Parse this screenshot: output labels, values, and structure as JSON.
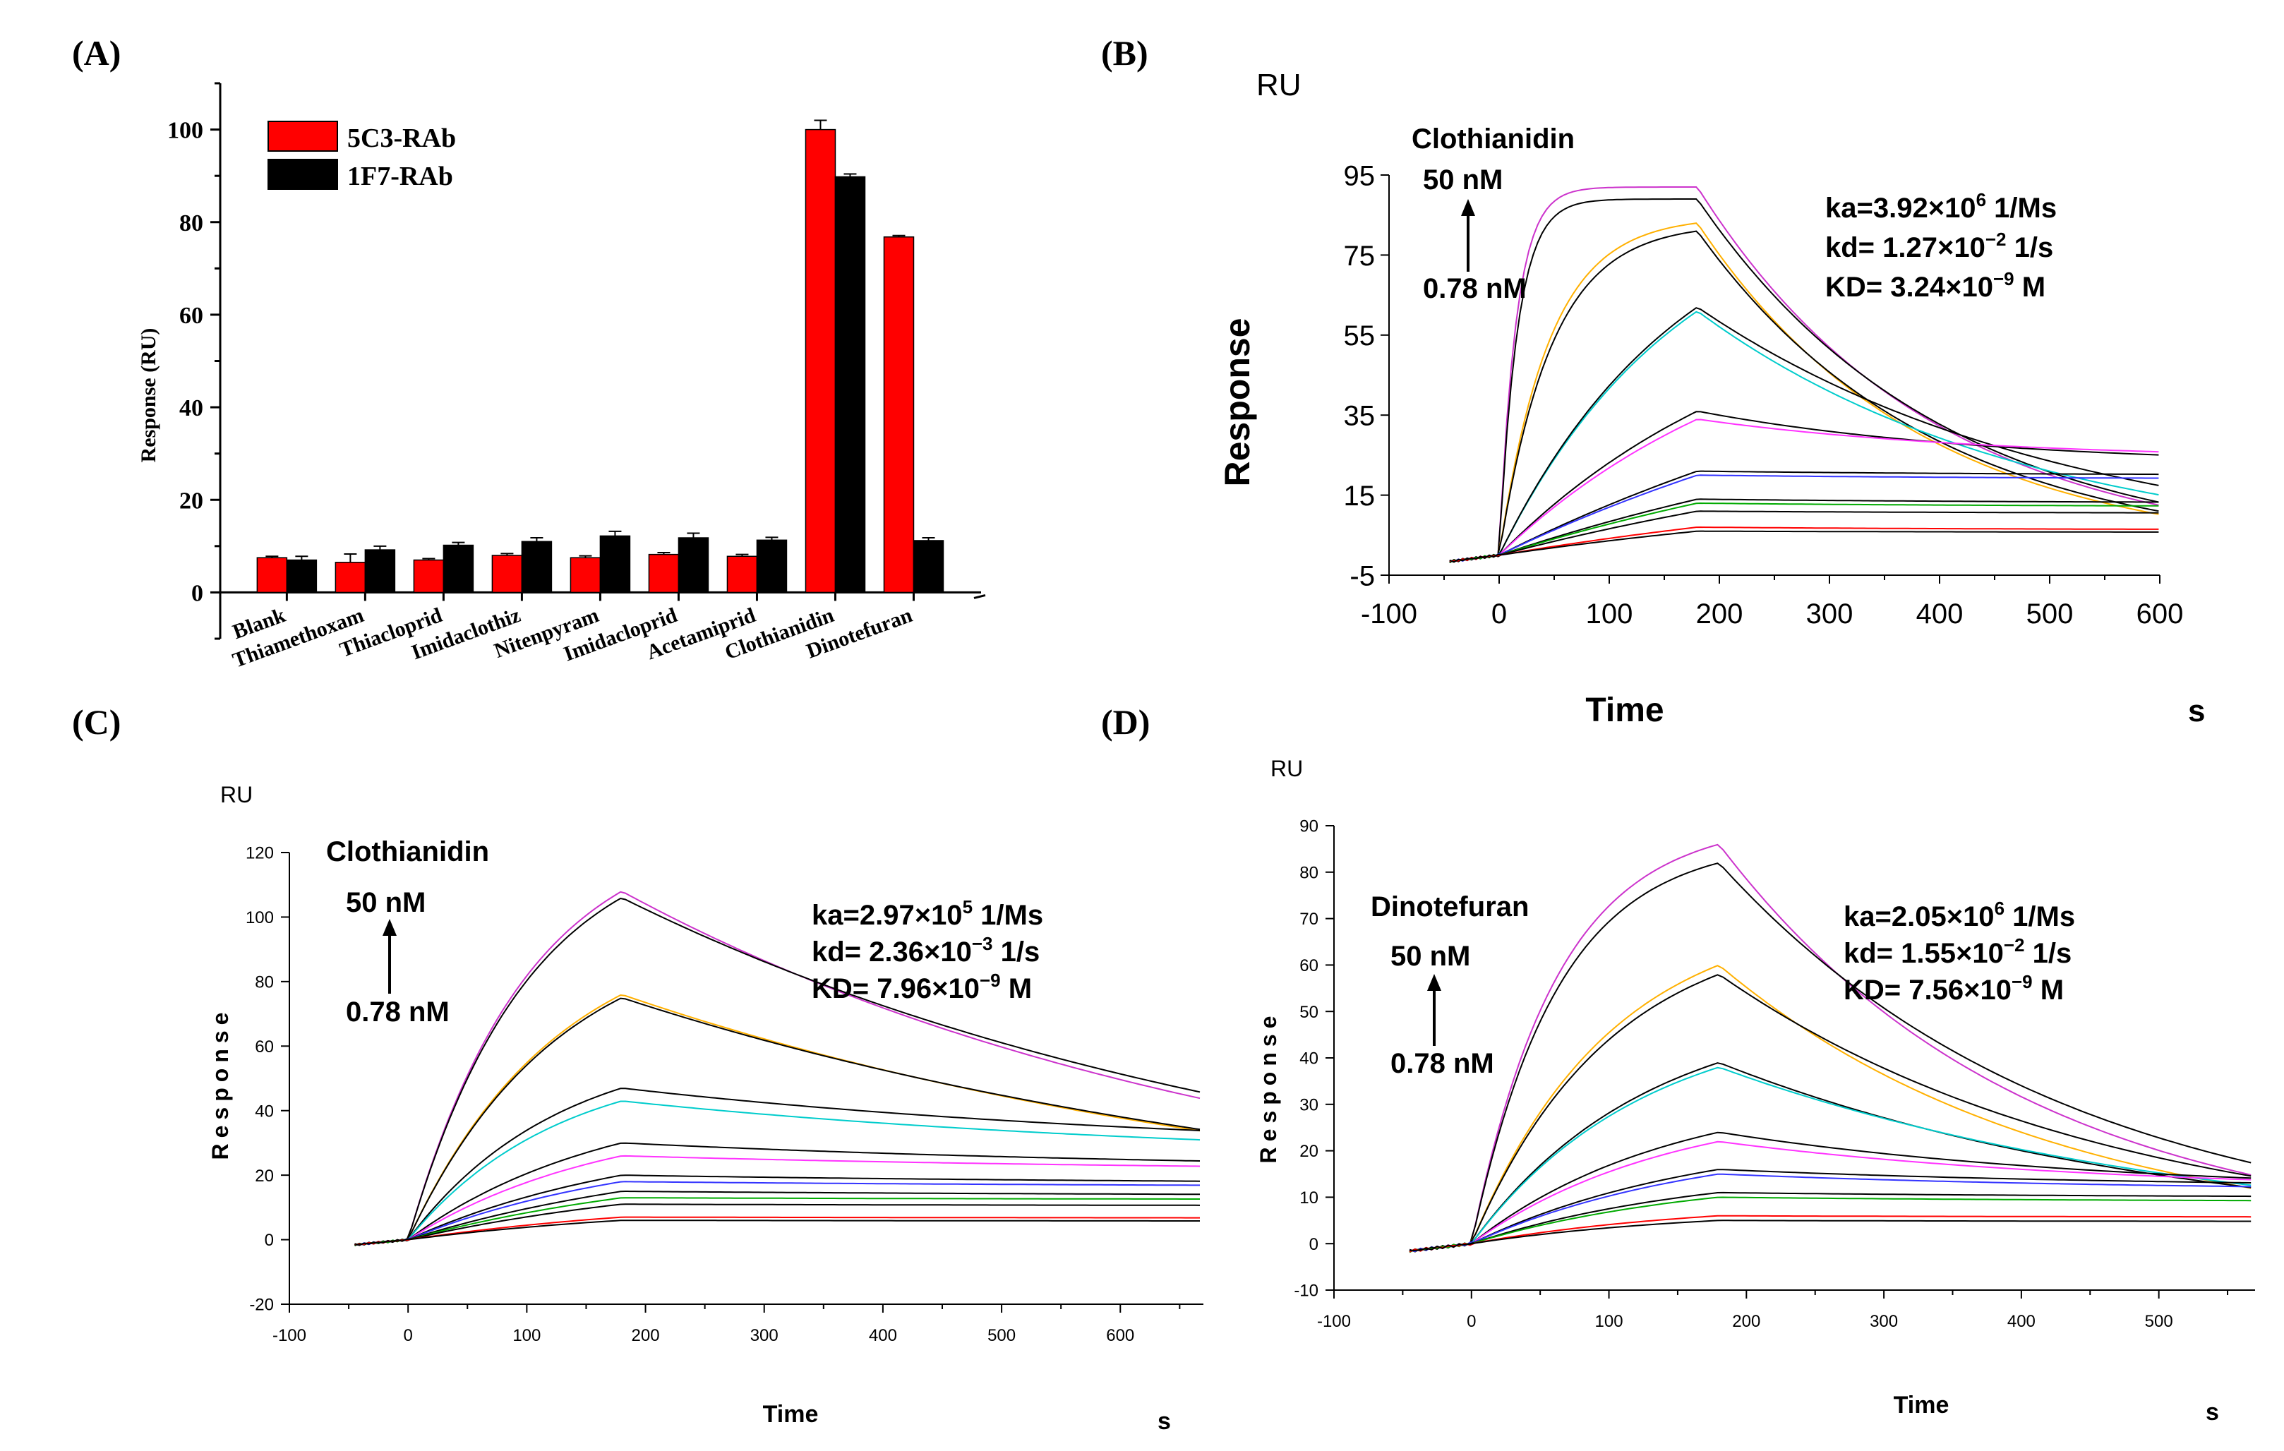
{
  "chart_data": [
    {
      "panel": "(A)",
      "type": "bar",
      "ylabel": "Response (RU)",
      "ylim": [
        -10,
        110
      ],
      "yticks": [
        0,
        20,
        40,
        60,
        80,
        100
      ],
      "categories": [
        "Blank",
        "Thiamethoxam",
        "Thiacloprid",
        "Imidaclothiz",
        "Nitenpyram",
        "Imidacloprid",
        "Acetamiprid",
        "Clothianidin",
        "Dinotefuran"
      ],
      "legend_position": "top-left",
      "series": [
        {
          "name": "5C3-RAb",
          "color": "#ff0000",
          "values": [
            7.5,
            6.5,
            7.0,
            8.0,
            7.5,
            8.2,
            7.8,
            100.0,
            76.8
          ],
          "errors": [
            0.3,
            1.8,
            0.3,
            0.4,
            0.4,
            0.4,
            0.4,
            2.0,
            0.3
          ]
        },
        {
          "name": "1F7-RAb",
          "color": "#000000",
          "values": [
            7.0,
            9.2,
            10.2,
            11.0,
            12.2,
            11.8,
            11.3,
            89.8,
            11.2
          ],
          "errors": [
            0.8,
            0.8,
            0.6,
            0.8,
            1.0,
            1.0,
            0.6,
            0.6,
            0.6
          ]
        }
      ]
    },
    {
      "panel": "(B)",
      "type": "line",
      "unit_label": "RU",
      "ylabel": "Response",
      "xlabel": "Time",
      "xunit": "s",
      "xlim": [
        -100,
        600
      ],
      "ylim": [
        -5,
        95
      ],
      "xticks": [
        -100,
        0,
        100,
        200,
        300,
        400,
        500,
        600
      ],
      "yticks": [
        -5,
        15,
        35,
        55,
        75,
        95
      ],
      "analyte": "Clothianidin",
      "conc_high": "50 nM",
      "conc_low": "0.78 nM",
      "kinetics": [
        {
          "pre": "ka=3.92×10",
          "exp": "6",
          "post": " 1/Ms"
        },
        {
          "pre": "kd= 1.27×10",
          "exp": "−2",
          "post": " 1/s"
        },
        {
          "pre": "KD= 3.24×10",
          "exp": "−9",
          "post": " M"
        }
      ],
      "t_end": 180,
      "x_start": -45,
      "x_end": 600,
      "curves": [
        {
          "color": "#cc33cc",
          "peak": 92,
          "k": 0.065,
          "plateau": 0,
          "tau": 210
        },
        {
          "color": "#000000",
          "peak": 89,
          "k": 0.06,
          "plateau": 0,
          "tau": 220
        },
        {
          "color": "#ffb000",
          "peak": 83,
          "k": 0.022,
          "plateau": 0,
          "tau": 200
        },
        {
          "color": "#000000",
          "peak": 81,
          "k": 0.021,
          "plateau": 0,
          "tau": 210
        },
        {
          "color": "#00cccc",
          "peak": 61,
          "k": 0.006,
          "plateau": 0,
          "tau": 300
        },
        {
          "color": "#000000",
          "peak": 62,
          "k": 0.006,
          "plateau": 0,
          "tau": 330
        },
        {
          "color": "#000000",
          "peak": 36,
          "k": 0.004,
          "plateau": 0.62,
          "tau": 260
        },
        {
          "color": "#ff33ff",
          "peak": 34,
          "k": 0.004,
          "plateau": 0.7,
          "tau": 260
        },
        {
          "color": "#000000",
          "peak": 21,
          "k": 0.002,
          "plateau": 0.95,
          "tau": 300
        },
        {
          "color": "#3333ff",
          "peak": 20,
          "k": 0.002,
          "plateau": 0.95,
          "tau": 300
        },
        {
          "color": "#000000",
          "peak": 14,
          "k": 0.002,
          "plateau": 0.93,
          "tau": 300
        },
        {
          "color": "#00aa00",
          "peak": 13,
          "k": 0.002,
          "plateau": 0.93,
          "tau": 300
        },
        {
          "color": "#000000",
          "peak": 11,
          "k": 0.002,
          "plateau": 0.95,
          "tau": 300
        },
        {
          "color": "#ff0000",
          "peak": 7,
          "k": 0.002,
          "plateau": 0.9,
          "tau": 300
        },
        {
          "color": "#000000",
          "peak": 6,
          "k": 0.002,
          "plateau": 0.95,
          "tau": 300
        }
      ]
    },
    {
      "panel": "(C)",
      "type": "line",
      "unit_label": "RU",
      "ylabel": "Response",
      "xlabel": "Time",
      "xunit": "s",
      "xlim": [
        -100,
        670
      ],
      "ylim": [
        -20,
        120
      ],
      "xticks": [
        -100,
        0,
        100,
        200,
        300,
        400,
        500,
        600
      ],
      "yticks": [
        -20,
        0,
        20,
        40,
        60,
        80,
        100,
        120
      ],
      "analyte": "Clothianidin",
      "conc_high": "50 nM",
      "conc_low": "0.78 nM",
      "kinetics": [
        {
          "pre": "ka=2.97×10",
          "exp": "5",
          "post": " 1/Ms"
        },
        {
          "pre": "kd= 2.36×10",
          "exp": "−3",
          "post": " 1/s"
        },
        {
          "pre": "KD= 7.96×10",
          "exp": "−9",
          "post": " M"
        }
      ],
      "t_end": 180,
      "x_start": -45,
      "x_end": 670,
      "curves": [
        {
          "color": "#cc33cc",
          "peak": 108,
          "k": 0.01,
          "plateau": 0,
          "tau": 540
        },
        {
          "color": "#000000",
          "peak": 106,
          "k": 0.01,
          "plateau": 0,
          "tau": 580
        },
        {
          "color": "#ffb000",
          "peak": 76,
          "k": 0.008,
          "plateau": 0,
          "tau": 600
        },
        {
          "color": "#000000",
          "peak": 75,
          "k": 0.008,
          "plateau": 0,
          "tau": 620
        },
        {
          "color": "#000000",
          "peak": 47,
          "k": 0.008,
          "plateau": 0.55,
          "tau": 500
        },
        {
          "color": "#00cccc",
          "peak": 43,
          "k": 0.008,
          "plateau": 0.55,
          "tau": 500
        },
        {
          "color": "#000000",
          "peak": 30,
          "k": 0.006,
          "plateau": 0.7,
          "tau": 500
        },
        {
          "color": "#ff33ff",
          "peak": 26,
          "k": 0.006,
          "plateau": 0.8,
          "tau": 500
        },
        {
          "color": "#000000",
          "peak": 20,
          "k": 0.005,
          "plateau": 0.85,
          "tau": 500
        },
        {
          "color": "#3333ff",
          "peak": 18,
          "k": 0.005,
          "plateau": 0.9,
          "tau": 500
        },
        {
          "color": "#000000",
          "peak": 15,
          "k": 0.004,
          "plateau": 0.9,
          "tau": 500
        },
        {
          "color": "#00aa00",
          "peak": 13,
          "k": 0.004,
          "plateau": 0.95,
          "tau": 500
        },
        {
          "color": "#000000",
          "peak": 11,
          "k": 0.004,
          "plateau": 0.95,
          "tau": 500
        },
        {
          "color": "#ff0000",
          "peak": 7,
          "k": 0.004,
          "plateau": 0.95,
          "tau": 500
        },
        {
          "color": "#000000",
          "peak": 6,
          "k": 0.004,
          "plateau": 0.95,
          "tau": 500
        }
      ]
    },
    {
      "panel": "(D)",
      "type": "line",
      "unit_label": "RU",
      "ylabel": "Response",
      "xlabel": "Time",
      "xunit": "s",
      "xlim": [
        -100,
        570
      ],
      "ylim": [
        -10,
        90
      ],
      "xticks": [
        -100,
        0,
        100,
        200,
        300,
        400,
        500
      ],
      "yticks": [
        -10,
        0,
        10,
        20,
        30,
        40,
        50,
        60,
        70,
        80,
        90
      ],
      "analyte": "Dinotefuran",
      "conc_high": "50 nM",
      "conc_low": "0.78 nM",
      "kinetics": [
        {
          "pre": "ka=2.05×10",
          "exp": "6",
          "post": " 1/Ms"
        },
        {
          "pre": "kd= 1.55×10",
          "exp": "−2",
          "post": " 1/s"
        },
        {
          "pre": "KD= 7.56×10",
          "exp": "−9",
          "post": " M"
        }
      ],
      "t_end": 180,
      "x_start": -45,
      "x_end": 570,
      "curves": [
        {
          "color": "#cc33cc",
          "peak": 86,
          "k": 0.016,
          "plateau": 0,
          "tau": 220
        },
        {
          "color": "#000000",
          "peak": 82,
          "k": 0.016,
          "plateau": 0,
          "tau": 250
        },
        {
          "color": "#ffb000",
          "peak": 60,
          "k": 0.01,
          "plateau": 0,
          "tau": 240
        },
        {
          "color": "#000000",
          "peak": 58,
          "k": 0.01,
          "plateau": 0,
          "tau": 280
        },
        {
          "color": "#000000",
          "peak": 39,
          "k": 0.008,
          "plateau": 0,
          "tau": 330
        },
        {
          "color": "#00cccc",
          "peak": 38,
          "k": 0.008,
          "plateau": 0,
          "tau": 350
        },
        {
          "color": "#000000",
          "peak": 24,
          "k": 0.007,
          "plateau": 0.45,
          "tau": 280
        },
        {
          "color": "#ff33ff",
          "peak": 22,
          "k": 0.007,
          "plateau": 0.5,
          "tau": 280
        },
        {
          "color": "#000000",
          "peak": 16,
          "k": 0.006,
          "plateau": 0.75,
          "tau": 300
        },
        {
          "color": "#3333ff",
          "peak": 15,
          "k": 0.006,
          "plateau": 0.75,
          "tau": 300
        },
        {
          "color": "#000000",
          "peak": 11,
          "k": 0.006,
          "plateau": 0.9,
          "tau": 300
        },
        {
          "color": "#00aa00",
          "peak": 10,
          "k": 0.006,
          "plateau": 0.9,
          "tau": 300
        },
        {
          "color": "#ff0000",
          "peak": 6,
          "k": 0.006,
          "plateau": 0.95,
          "tau": 300
        },
        {
          "color": "#000000",
          "peak": 5,
          "k": 0.006,
          "plateau": 0.95,
          "tau": 300
        }
      ]
    }
  ]
}
